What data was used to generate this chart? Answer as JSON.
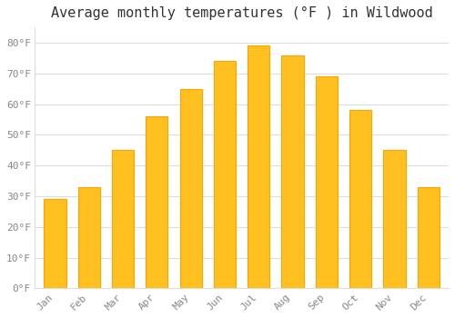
{
  "title": "Average monthly temperatures (°F ) in Wildwood",
  "months": [
    "Jan",
    "Feb",
    "Mar",
    "Apr",
    "May",
    "Jun",
    "Jul",
    "Aug",
    "Sep",
    "Oct",
    "Nov",
    "Dec"
  ],
  "temperatures": [
    29,
    33,
    45,
    56,
    65,
    74,
    79,
    76,
    69,
    58,
    45,
    33
  ],
  "bar_color": "#FFC020",
  "bar_edge_color": "#FFA500",
  "background_color": "#FFFFFF",
  "plot_bg_color": "#FFFFFF",
  "grid_color": "#DDDDDD",
  "text_color": "#888888",
  "title_color": "#333333",
  "ylim": [
    0,
    85
  ],
  "yticks": [
    0,
    10,
    20,
    30,
    40,
    50,
    60,
    70,
    80
  ],
  "ytick_labels": [
    "0°F",
    "10°F",
    "20°F",
    "30°F",
    "40°F",
    "50°F",
    "60°F",
    "70°F",
    "80°F"
  ],
  "title_fontsize": 11,
  "tick_fontsize": 8,
  "font_family": "monospace",
  "bar_width": 0.65
}
